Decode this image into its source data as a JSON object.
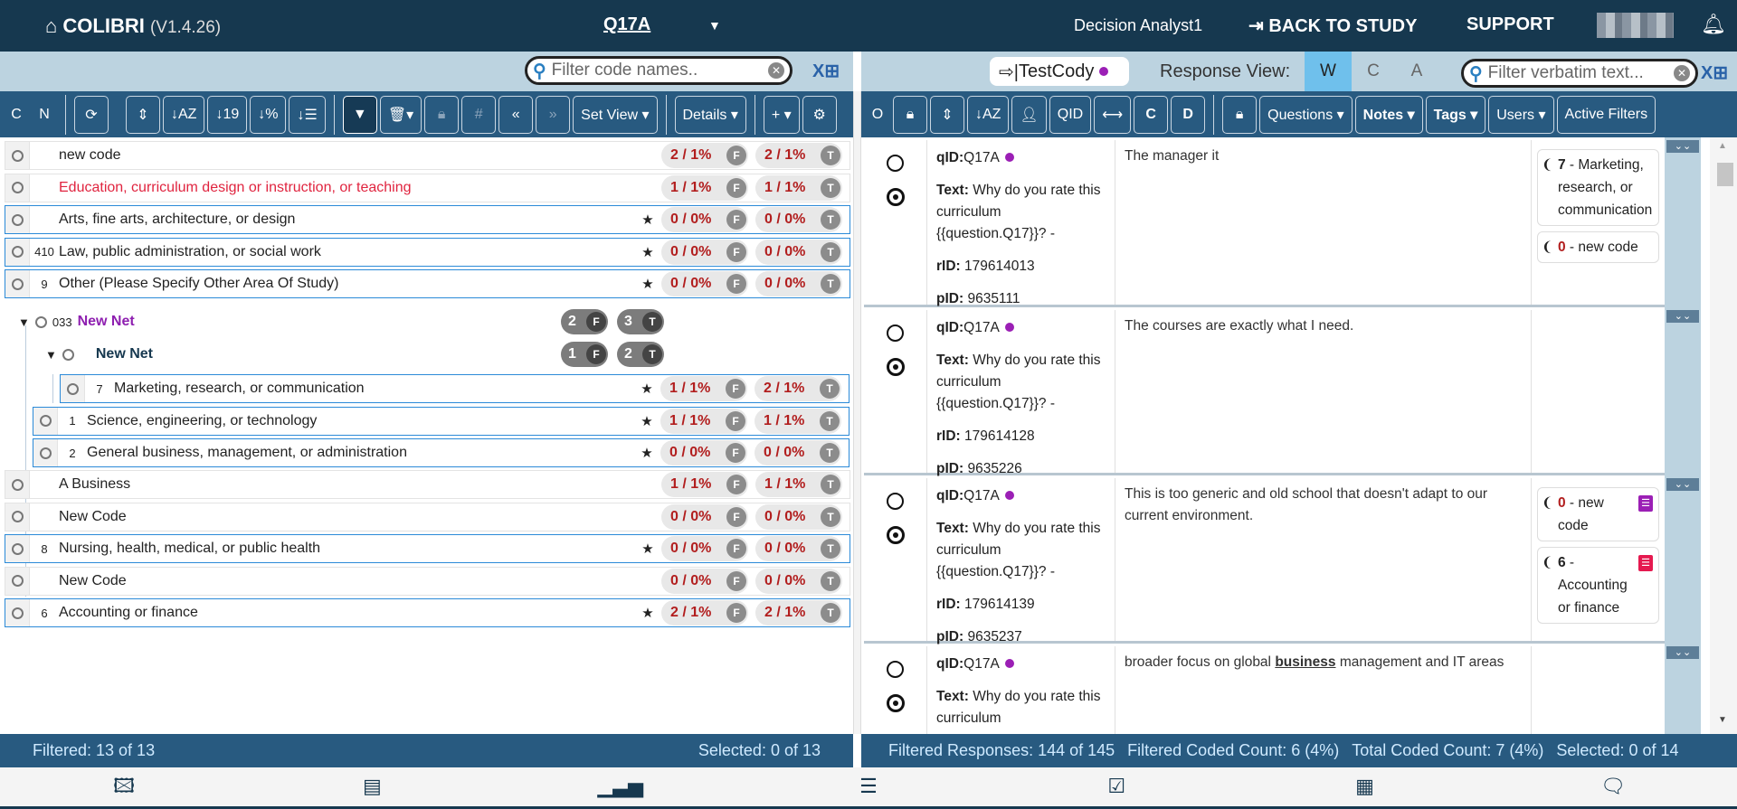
{
  "header": {
    "app": "COLIBRI",
    "version": "(V1.4.26)",
    "question": "Q17A",
    "user": "Decision Analyst1",
    "back": "BACK TO STUDY",
    "support": "SUPPORT"
  },
  "left": {
    "search_placeholder": "Filter code names..",
    "toolbar": {
      "c": "C",
      "n": "N",
      "set_view": "Set View ▾",
      "details": "Details ▾",
      "plus": "+ ▾",
      "hash": "#",
      "prev": "«",
      "next": "»"
    },
    "rows": [
      {
        "num": "",
        "label": "new code",
        "star": false,
        "f": "2 / 1%",
        "t": "2 / 1%",
        "red": false
      },
      {
        "num": "",
        "label": "Education, curriculum design or instruction, or teaching",
        "star": false,
        "f": "1 / 1%",
        "t": "1 / 1%",
        "red": true
      },
      {
        "num": "",
        "label": "Arts, fine arts, architecture, or design",
        "star": true,
        "f": "0 / 0%",
        "t": "0 / 0%",
        "red": false
      },
      {
        "num": "410",
        "label": "Law, public administration, or social work",
        "star": true,
        "f": "0 / 0%",
        "t": "0 / 0%",
        "red": false
      },
      {
        "num": "9",
        "label": "Other (Please Specify Other Area Of Study)",
        "star": true,
        "f": "0 / 0%",
        "t": "0 / 0%",
        "red": false
      }
    ],
    "net": {
      "num": "033",
      "label": "New Net",
      "f": "2",
      "t": "3",
      "sub_label": "New Net",
      "sub_f": "1",
      "sub_t": "2"
    },
    "net_rows": [
      {
        "num": "7",
        "label": "Marketing, research, or communication",
        "star": true,
        "f": "1 / 1%",
        "t": "2 / 1%"
      },
      {
        "num": "1",
        "label": "Science, engineering, or technology",
        "star": true,
        "f": "1 / 1%",
        "t": "1 / 1%"
      },
      {
        "num": "2",
        "label": "General business, management, or administration",
        "star": true,
        "f": "0 / 0%",
        "t": "0 / 0%"
      }
    ],
    "rows2": [
      {
        "num": "",
        "label": "A Business",
        "star": false,
        "f": "1 / 1%",
        "t": "1 / 1%"
      },
      {
        "num": "",
        "label": "New Code",
        "star": false,
        "f": "0 / 0%",
        "t": "0 / 0%"
      },
      {
        "num": "8",
        "label": "Nursing, health, medical, or public health",
        "star": true,
        "f": "0 / 0%",
        "t": "0 / 0%"
      },
      {
        "num": "",
        "label": "New Code",
        "star": false,
        "f": "0 / 0%",
        "t": "0 / 0%"
      },
      {
        "num": "6",
        "label": "Accounting or finance",
        "star": true,
        "f": "2 / 1%",
        "t": "2 / 1%"
      }
    ],
    "f_letter": "F",
    "t_letter": "T",
    "status": {
      "filtered": "Filtered: 13 of 13",
      "selected": "Selected: 0 of 13"
    }
  },
  "right": {
    "coder": "TestCody",
    "response_view_label": "Response View:",
    "views": [
      "W",
      "C",
      "A"
    ],
    "active_view": "W",
    "search_placeholder": "Filter verbatim text...",
    "toolbar": {
      "o": "O",
      "qid": "QID",
      "c": "C",
      "d": "D",
      "questions": "Questions ▾",
      "notes": "Notes ▾",
      "tags": "Tags ▾",
      "users": "Users ▾",
      "active_filters": "Active Filters"
    },
    "labels": {
      "qid": "qID:",
      "text": "Text:",
      "rid": "rID:",
      "pid": "pID:"
    },
    "responses": [
      {
        "qid": "Q17A",
        "text": "Why do you rate this curriculum {{question.Q17}}? -",
        "rid": "179614013",
        "pid": "9635111",
        "verbatim": "The manager it",
        "codes": [
          {
            "n": "7",
            "label": " - Marketing, research, or communication",
            "red": false
          },
          {
            "n": "0",
            "label": " - new code",
            "red": true
          }
        ]
      },
      {
        "qid": "Q17A",
        "text": "Why do you rate this curriculum {{question.Q17}}? -",
        "rid": "179614128",
        "pid": "9635226",
        "verbatim": "The courses are exactly what I need.",
        "codes": []
      },
      {
        "qid": "Q17A",
        "text": "Why do you rate this curriculum {{question.Q17}}? -",
        "rid": "179614139",
        "pid": "9635237",
        "verbatim": "This is too generic and old school that doesn't adapt to our current environment.",
        "codes": [
          {
            "n": "0",
            "label": " - new code",
            "red": true,
            "note": "#9b1fb5"
          },
          {
            "n": "6",
            "label": " - Accounting or finance",
            "red": false,
            "note": "#e5194f"
          }
        ]
      },
      {
        "qid": "Q17A",
        "text": "Why do you rate this curriculum",
        "verbatim_pre": "broader focus on global ",
        "verbatim_bold": "business",
        "verbatim_post": " management and IT areas",
        "codes": []
      }
    ],
    "status": {
      "filtered": "Filtered Responses: 144 of 145",
      "fcoded": "Filtered Coded Count: 6 (4%)",
      "tcoded": "Total Coded Count: 7 (4%)",
      "selected": "Selected: 0 of 14"
    }
  },
  "nav": [
    "gallery-icon",
    "document-icon",
    "bar-chart-icon",
    "sliders-icon",
    "checklist-icon",
    "table-icon",
    "comments-icon"
  ],
  "colors": {
    "navy": "#16384f",
    "toolbar": "#285a80",
    "subbar": "#bcd3e0",
    "count_red": "#b21e1e",
    "net_purple": "#8e1fb0",
    "accent_blue": "#2b8ad8"
  }
}
